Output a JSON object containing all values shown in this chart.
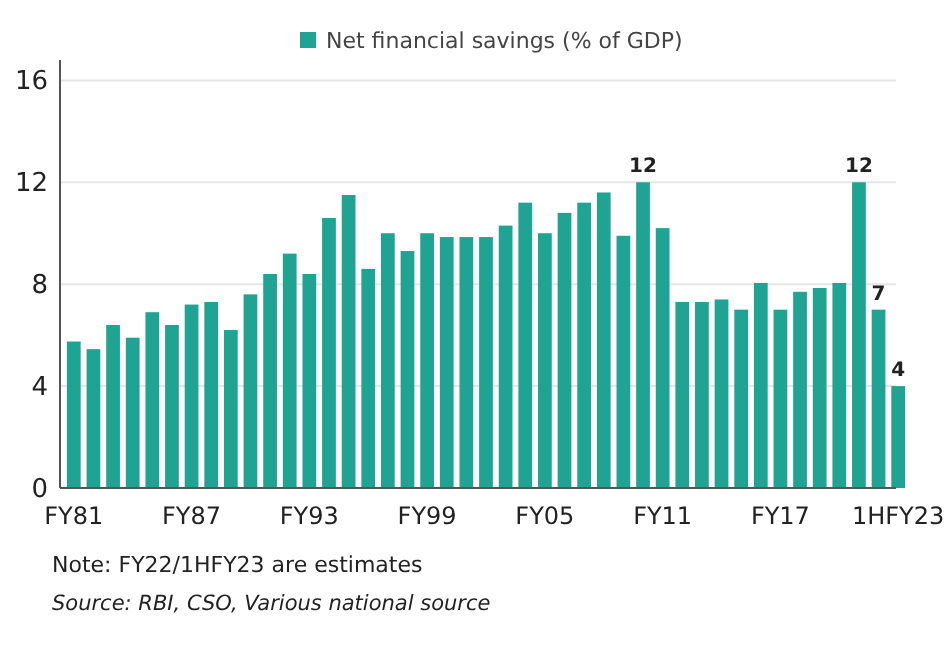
{
  "chart_data": {
    "type": "bar",
    "categories": [
      "FY81",
      null,
      null,
      null,
      null,
      null,
      "FY87",
      null,
      null,
      null,
      null,
      null,
      "FY93",
      null,
      null,
      null,
      null,
      null,
      "FY99",
      null,
      null,
      null,
      null,
      null,
      "FY05",
      null,
      null,
      null,
      null,
      null,
      "FY11",
      null,
      null,
      null,
      null,
      null,
      "FY17",
      null,
      null,
      null,
      null,
      null,
      "1HFY23"
    ],
    "series": [
      {
        "name": "Net financial savings (% of GDP)",
        "color": "#1fa393",
        "values": [
          5.75,
          5.45,
          6.4,
          5.9,
          6.9,
          6.4,
          7.2,
          7.3,
          6.2,
          7.6,
          8.4,
          9.2,
          8.4,
          10.6,
          11.5,
          8.6,
          10.0,
          9.3,
          10.0,
          9.85,
          9.85,
          9.85,
          10.3,
          11.2,
          10.0,
          10.8,
          11.2,
          11.6,
          9.9,
          12,
          10.2,
          7.3,
          7.3,
          7.4,
          7.0,
          8.05,
          7.0,
          7.7,
          7.85,
          8.05,
          12,
          7,
          4
        ],
        "value_labels": [
          null,
          null,
          null,
          null,
          null,
          null,
          null,
          null,
          null,
          null,
          null,
          null,
          null,
          null,
          null,
          null,
          null,
          null,
          null,
          null,
          null,
          null,
          null,
          null,
          null,
          null,
          null,
          null,
          null,
          "12",
          null,
          null,
          null,
          null,
          null,
          null,
          null,
          null,
          null,
          null,
          "12",
          "7",
          "4"
        ]
      }
    ],
    "ylim": [
      0,
      16.8
    ],
    "yticks": [
      0,
      4,
      8,
      12,
      16
    ],
    "grid": "y",
    "legend": "top right",
    "annotations": [
      "Note: FY22/1HFY23 are estimates",
      "Source: RBI, CSO, Various national source"
    ]
  }
}
